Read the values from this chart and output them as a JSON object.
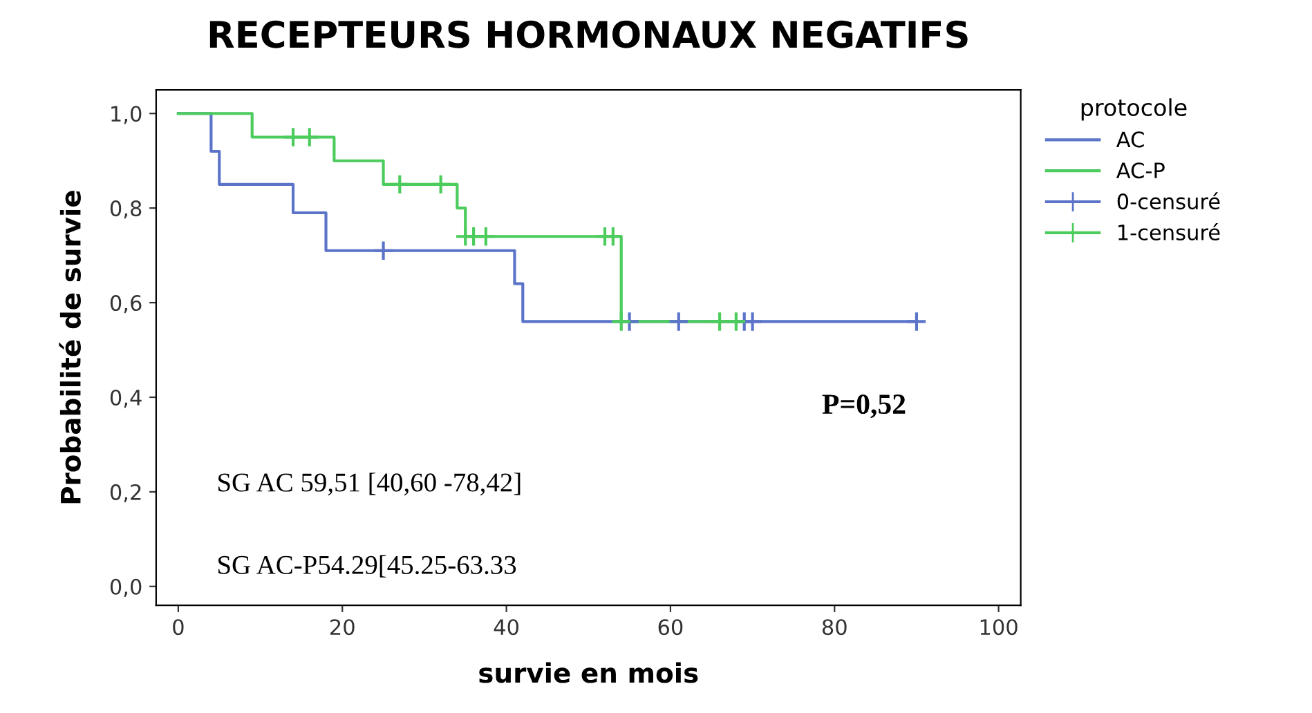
{
  "chart_data": {
    "type": "step",
    "title": "RECEPTEURS HORMONAUX NEGATIFS",
    "xlabel": "survie en mois",
    "ylabel": "Probabilité de survie",
    "legend_title": "protocole",
    "legend": "right",
    "grid": false,
    "xlim": [
      -2.7,
      102.7
    ],
    "xticks": [
      0,
      20,
      40,
      60,
      80,
      100
    ],
    "ylim": [
      -0.04,
      1.05
    ],
    "yticks": [
      {
        "value": 0,
        "label": "0,0"
      },
      {
        "value": 0.2,
        "label": "0,2"
      },
      {
        "value": 0.4,
        "label": "0,4"
      },
      {
        "value": 0.6,
        "label": "0,6"
      },
      {
        "value": 0.8,
        "label": "0,8"
      },
      {
        "value": 1,
        "label": "1,0"
      }
    ],
    "series": [
      {
        "name": "AC",
        "color": "#5b74c9",
        "x": [
          0,
          4,
          5,
          14,
          18,
          41,
          42,
          90
        ],
        "values": [
          1,
          0.92,
          0.85,
          0.79,
          0.71,
          0.64,
          0.56,
          0.56
        ]
      },
      {
        "name": "AC-P",
        "color": "#4ccc5c",
        "x": [
          0,
          9,
          19,
          25,
          34,
          35,
          54,
          69
        ],
        "values": [
          1,
          0.95,
          0.9,
          0.85,
          0.8,
          0.74,
          0.56,
          0.56
        ]
      },
      {
        "name": "0-censuré",
        "type": "scatter",
        "marker": "cross",
        "color": "#5b74c9",
        "x": [
          25,
          55,
          61,
          69,
          70,
          90
        ],
        "values": [
          0.71,
          0.56,
          0.56,
          0.56,
          0.56,
          0.56
        ]
      },
      {
        "name": "1-censuré",
        "type": "scatter",
        "marker": "cross",
        "color": "#4ccc5c",
        "x": [
          14,
          16,
          27,
          32,
          35,
          36,
          37.5,
          52,
          53,
          54,
          66,
          68
        ],
        "values": [
          0.95,
          0.95,
          0.85,
          0.85,
          0.74,
          0.74,
          0.74,
          0.74,
          0.74,
          0.56,
          0.56,
          0.56
        ]
      }
    ],
    "annotations": [
      "P=0,52",
      "SG AC 59,51 [40,60 -78,42]",
      "SG AC-P54.29[45.25-63.33"
    ]
  }
}
